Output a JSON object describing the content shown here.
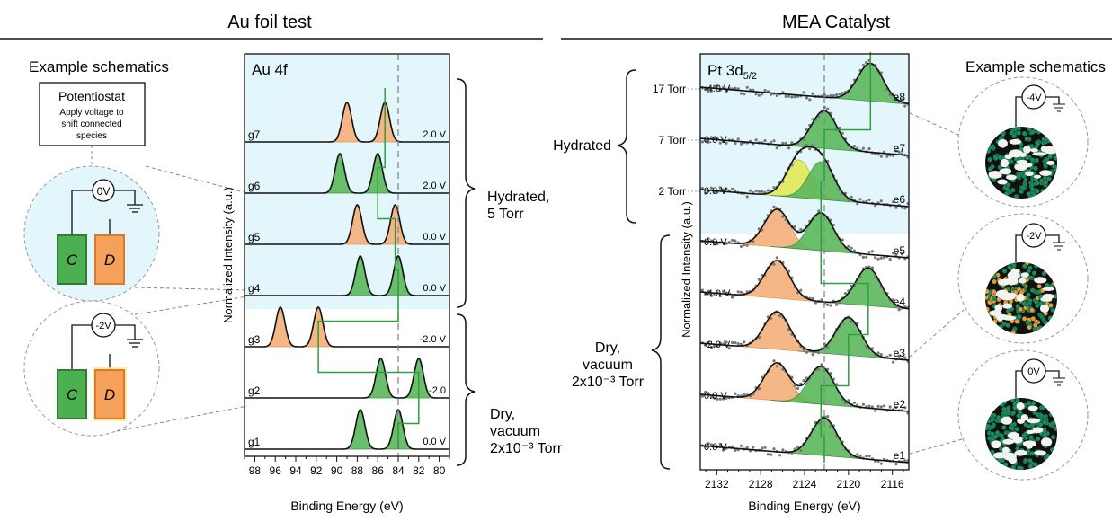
{
  "sections": {
    "left_title": "Au foil test",
    "right_title": "MEA Catalyst"
  },
  "schematics": {
    "left_heading": "Example schematics",
    "right_heading": "Example schematics",
    "potentiostat_title": "Potentiostat",
    "potentiostat_text_line1": "Apply voltage to",
    "potentiostat_text_line2": "shift connected",
    "potentiostat_text_line3": "species",
    "circuit_top_voltage": "0V",
    "circuit_bottom_voltage": "-2V",
    "electrode_c": "C",
    "electrode_d": "D",
    "mea_top_voltage": "-4V",
    "mea_mid_voltage": "-2V",
    "mea_bottom_voltage": "0V"
  },
  "chart_data": [
    {
      "type": "line",
      "panel_label": "Au 4f",
      "xlabel": "Binding Energy (eV)",
      "ylabel": "Normalized Intensity (a.u.)",
      "xlim": [
        99,
        79
      ],
      "xticks": [
        98,
        96,
        94,
        92,
        90,
        88,
        86,
        84,
        82,
        80
      ],
      "reference_line": 84.0,
      "series": [
        {
          "name": "g1",
          "voltage": "0.0 V",
          "peaks": [
            {
              "center": 87.7,
              "color": "green"
            },
            {
              "center": 84.0,
              "color": "green"
            }
          ]
        },
        {
          "name": "g2",
          "voltage": "-2.0",
          "peaks": [
            {
              "center": 85.7,
              "color": "green"
            },
            {
              "center": 82.0,
              "color": "green"
            }
          ]
        },
        {
          "name": "g3",
          "voltage": "-2.0 V",
          "peaks": [
            {
              "center": 95.5,
              "color": "orange"
            },
            {
              "center": 91.8,
              "color": "orange"
            }
          ]
        },
        {
          "name": "g4",
          "voltage": "0.0 V",
          "peaks": [
            {
              "center": 87.7,
              "color": "green"
            },
            {
              "center": 84.0,
              "color": "green"
            }
          ]
        },
        {
          "name": "g5",
          "voltage": "0.0 V",
          "peaks": [
            {
              "center": 88.0,
              "color": "orange"
            },
            {
              "center": 84.3,
              "color": "orange"
            }
          ]
        },
        {
          "name": "g6",
          "voltage": "2.0 V",
          "peaks": [
            {
              "center": 89.7,
              "color": "green"
            },
            {
              "center": 86.0,
              "color": "green"
            }
          ]
        },
        {
          "name": "g7",
          "voltage": "2.0 V",
          "peaks": [
            {
              "center": 89.0,
              "color": "orange"
            },
            {
              "center": 85.3,
              "color": "orange"
            }
          ]
        }
      ],
      "brackets": [
        {
          "label_line1": "Hydrated,",
          "label_line2": "5 Torr",
          "spans": [
            "g4",
            "g7"
          ]
        },
        {
          "label_line1": "Dry,",
          "label_line2": "vacuum",
          "label_line3": "2x10⁻³ Torr",
          "spans": [
            "g1",
            "g3"
          ]
        }
      ]
    },
    {
      "type": "line",
      "panel_label": "Pt 3d",
      "panel_subscript": "5/2",
      "xlabel": "Binding Energy (eV)",
      "ylabel": "Normalized Intensity (a.u.)",
      "xlim": [
        2133.5,
        2114.5
      ],
      "xticks": [
        2132,
        2128,
        2124,
        2120,
        2116
      ],
      "reference_line": 2122.2,
      "series": [
        {
          "name": "e1",
          "voltage": "0.0 V",
          "peaks": [
            {
              "center": 2122.2,
              "color": "green"
            }
          ]
        },
        {
          "name": "e2",
          "voltage": "0.0 V",
          "peaks": [
            {
              "center": 2126.5,
              "color": "orange"
            },
            {
              "center": 2122.5,
              "color": "green"
            }
          ]
        },
        {
          "name": "e3",
          "voltage": "-2.0 V",
          "peaks": [
            {
              "center": 2126.5,
              "color": "orange"
            },
            {
              "center": 2120.0,
              "color": "green"
            }
          ]
        },
        {
          "name": "e4",
          "voltage": "-4.0 V",
          "peaks": [
            {
              "center": 2126.5,
              "color": "orange"
            },
            {
              "center": 2118.2,
              "color": "green"
            }
          ]
        },
        {
          "name": "e5",
          "voltage": "0.0 V",
          "peaks": [
            {
              "center": 2126.5,
              "color": "orange"
            },
            {
              "center": 2122.5,
              "color": "green"
            }
          ]
        },
        {
          "name": "e6",
          "voltage": "0.0 V",
          "pressure": "2 Torr",
          "peaks": [
            {
              "center": 2124.5,
              "color": "yellow"
            },
            {
              "center": 2122.5,
              "color": "green"
            }
          ]
        },
        {
          "name": "e7",
          "voltage": "0.0 V",
          "pressure": "7 Torr",
          "peaks": [
            {
              "center": 2122.2,
              "color": "green"
            }
          ]
        },
        {
          "name": "e8",
          "voltage": "-4.0 V",
          "pressure": "17 Torr",
          "peaks": [
            {
              "center": 2118.0,
              "color": "green"
            }
          ]
        }
      ],
      "brackets": [
        {
          "label_line1": "Hydrated",
          "spans": [
            "e6",
            "e8"
          ]
        },
        {
          "label_line1": "Dry,",
          "label_line2": "vacuum",
          "label_line3": "2x10⁻³ Torr",
          "spans": [
            "e1",
            "e5"
          ]
        }
      ]
    }
  ]
}
